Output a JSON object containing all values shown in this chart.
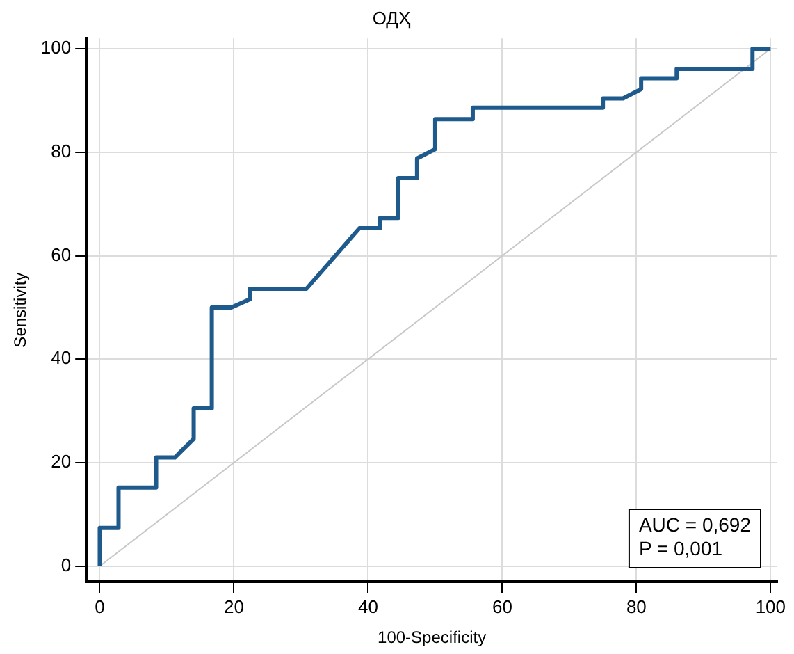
{
  "chart_data": {
    "type": "line",
    "title": "ОДҲ",
    "xlabel": "100-Specificity",
    "ylabel": "Sensitivity",
    "xlim": [
      -2,
      101
    ],
    "ylim": [
      -3,
      102
    ],
    "xticks": [
      0,
      20,
      40,
      60,
      80,
      100
    ],
    "yticks": [
      0,
      20,
      40,
      60,
      80,
      100
    ],
    "grid": true,
    "legend": false,
    "marker": "none",
    "series": [
      {
        "color": "#1f5a8c",
        "x": [
          0,
          0,
          2.8,
          2.8,
          8.4,
          8.4,
          11.2,
          14.0,
          14.0,
          16.7,
          16.7,
          19.6,
          22.4,
          22.4,
          30.8,
          38.7,
          41.8,
          41.8,
          44.5,
          44.5,
          47.3,
          47.3,
          50.0,
          50.0,
          55.6,
          55.6,
          75.0,
          75.0,
          78.0,
          80.7,
          80.7,
          86.0,
          86.0,
          97.3,
          97.3,
          100
        ],
        "values": [
          0,
          7.4,
          7.4,
          15.2,
          15.2,
          21,
          21,
          24.6,
          30.5,
          30.5,
          50,
          50,
          51.6,
          53.6,
          53.6,
          65.3,
          65.3,
          67.3,
          67.3,
          75,
          75,
          78.8,
          80.6,
          86.4,
          86.4,
          88.6,
          88.6,
          90.4,
          90.4,
          92.2,
          94.3,
          94.3,
          96.1,
          96.1,
          100,
          100
        ]
      },
      {
        "color": "#c8c8c8",
        "x": [
          0,
          100
        ],
        "values": [
          0,
          100
        ]
      }
    ],
    "annotations": [
      "AUC = 0,692",
      "P = 0,001"
    ]
  }
}
